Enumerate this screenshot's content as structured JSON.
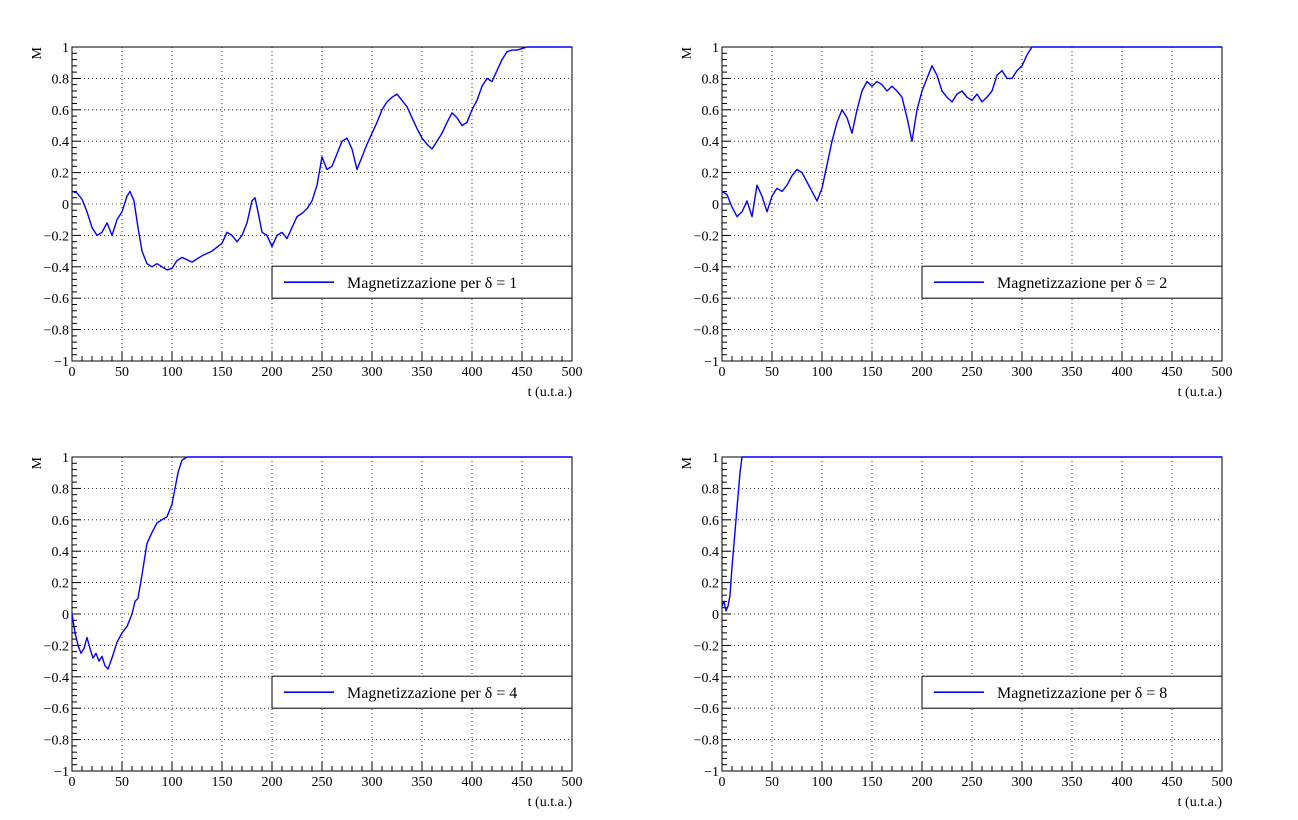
{
  "chart_data": [
    {
      "type": "line",
      "title": "",
      "xlabel": "t (u.t.a.)",
      "ylabel": "M",
      "xlim": [
        0,
        500
      ],
      "ylim": [
        -1,
        1
      ],
      "xticks": [
        "0",
        "50",
        "100",
        "150",
        "200",
        "250",
        "300",
        "350",
        "400",
        "450",
        "500"
      ],
      "yticks": [
        "−1",
        "−0.8",
        "−0.6",
        "−0.4",
        "−0.2",
        "0",
        "0.2",
        "0.4",
        "0.6",
        "0.8",
        "1"
      ],
      "grid": true,
      "legend": "center-right",
      "color": "#0000ff",
      "series": [
        {
          "name": "Magnetizzazione per δ = 1",
          "x": [
            0,
            5,
            10,
            15,
            20,
            25,
            30,
            35,
            40,
            45,
            50,
            55,
            58,
            62,
            66,
            70,
            75,
            80,
            85,
            90,
            95,
            100,
            105,
            110,
            120,
            130,
            140,
            150,
            155,
            160,
            165,
            170,
            175,
            180,
            183,
            186,
            190,
            195,
            200,
            205,
            210,
            215,
            220,
            225,
            230,
            235,
            240,
            245,
            250,
            255,
            260,
            265,
            270,
            275,
            280,
            285,
            290,
            295,
            300,
            305,
            310,
            315,
            320,
            325,
            330,
            335,
            340,
            345,
            350,
            355,
            360,
            365,
            370,
            375,
            380,
            385,
            390,
            395,
            400,
            405,
            410,
            415,
            420,
            425,
            430,
            435,
            440,
            445,
            450,
            455,
            460,
            465,
            470,
            480,
            490,
            500
          ],
          "y": [
            0.08,
            0.07,
            0.03,
            -0.05,
            -0.15,
            -0.2,
            -0.18,
            -0.12,
            -0.2,
            -0.1,
            -0.05,
            0.05,
            0.08,
            0.02,
            -0.15,
            -0.3,
            -0.38,
            -0.4,
            -0.38,
            -0.4,
            -0.42,
            -0.41,
            -0.36,
            -0.34,
            -0.37,
            -0.33,
            -0.3,
            -0.25,
            -0.18,
            -0.2,
            -0.24,
            -0.2,
            -0.12,
            0.02,
            0.04,
            -0.05,
            -0.18,
            -0.2,
            -0.27,
            -0.2,
            -0.18,
            -0.22,
            -0.15,
            -0.08,
            -0.06,
            -0.03,
            0.02,
            0.12,
            0.3,
            0.22,
            0.24,
            0.32,
            0.4,
            0.42,
            0.35,
            0.22,
            0.3,
            0.38,
            0.45,
            0.52,
            0.6,
            0.65,
            0.68,
            0.7,
            0.66,
            0.62,
            0.55,
            0.48,
            0.42,
            0.38,
            0.35,
            0.4,
            0.45,
            0.52,
            0.58,
            0.55,
            0.5,
            0.52,
            0.6,
            0.66,
            0.75,
            0.8,
            0.78,
            0.85,
            0.92,
            0.97,
            0.98,
            0.98,
            0.99,
            1,
            1,
            1,
            1,
            1,
            1,
            1
          ]
        }
      ]
    },
    {
      "type": "line",
      "title": "",
      "xlabel": "t (u.t.a.)",
      "ylabel": "M",
      "xlim": [
        0,
        500
      ],
      "ylim": [
        -1,
        1
      ],
      "xticks": [
        "0",
        "50",
        "100",
        "150",
        "200",
        "250",
        "300",
        "350",
        "400",
        "450",
        "500"
      ],
      "yticks": [
        "−1",
        "−0.8",
        "−0.6",
        "−0.4",
        "−0.2",
        "0",
        "0.2",
        "0.4",
        "0.6",
        "0.8",
        "1"
      ],
      "grid": true,
      "legend": "center-right",
      "color": "#0000ff",
      "series": [
        {
          "name": "Magnetizzazione per δ = 2",
          "x": [
            0,
            5,
            10,
            15,
            20,
            25,
            30,
            35,
            40,
            45,
            50,
            55,
            60,
            65,
            70,
            75,
            80,
            85,
            90,
            95,
            100,
            105,
            110,
            115,
            120,
            125,
            130,
            135,
            140,
            145,
            150,
            155,
            160,
            165,
            170,
            175,
            180,
            185,
            190,
            195,
            200,
            205,
            210,
            215,
            220,
            225,
            230,
            235,
            240,
            245,
            250,
            255,
            260,
            265,
            270,
            275,
            280,
            285,
            290,
            295,
            300,
            305,
            310,
            315,
            320,
            400,
            500
          ],
          "y": [
            0.08,
            0.06,
            -0.02,
            -0.08,
            -0.05,
            0.02,
            -0.08,
            0.12,
            0.05,
            -0.05,
            0.05,
            0.1,
            0.08,
            0.12,
            0.18,
            0.22,
            0.2,
            0.14,
            0.08,
            0.02,
            0.1,
            0.25,
            0.4,
            0.52,
            0.6,
            0.55,
            0.45,
            0.6,
            0.72,
            0.78,
            0.75,
            0.78,
            0.76,
            0.72,
            0.75,
            0.72,
            0.68,
            0.55,
            0.4,
            0.6,
            0.72,
            0.8,
            0.88,
            0.82,
            0.72,
            0.68,
            0.65,
            0.7,
            0.72,
            0.68,
            0.66,
            0.7,
            0.65,
            0.68,
            0.72,
            0.82,
            0.85,
            0.8,
            0.8,
            0.85,
            0.88,
            0.95,
            1,
            1,
            1,
            1,
            1
          ]
        }
      ]
    },
    {
      "type": "line",
      "title": "",
      "xlabel": "t (u.t.a.)",
      "ylabel": "M",
      "xlim": [
        0,
        500
      ],
      "ylim": [
        -1,
        1
      ],
      "xticks": [
        "0",
        "50",
        "100",
        "150",
        "200",
        "250",
        "300",
        "350",
        "400",
        "450",
        "500"
      ],
      "yticks": [
        "−1",
        "−0.8",
        "−0.6",
        "−0.4",
        "−0.2",
        "0",
        "0.2",
        "0.4",
        "0.6",
        "0.8",
        "1"
      ],
      "grid": true,
      "legend": "center-right",
      "color": "#0000ff",
      "series": [
        {
          "name": "Magnetizzazione per δ = 4",
          "x": [
            0,
            3,
            6,
            9,
            12,
            15,
            18,
            21,
            24,
            27,
            30,
            33,
            36,
            40,
            45,
            50,
            55,
            60,
            63,
            66,
            70,
            75,
            80,
            85,
            90,
            95,
            100,
            103,
            106,
            110,
            115,
            200,
            300,
            400,
            500
          ],
          "y": [
            0,
            -0.12,
            -0.2,
            -0.25,
            -0.22,
            -0.15,
            -0.22,
            -0.28,
            -0.25,
            -0.3,
            -0.27,
            -0.33,
            -0.35,
            -0.28,
            -0.18,
            -0.12,
            -0.08,
            0,
            0.08,
            0.1,
            0.25,
            0.45,
            0.52,
            0.58,
            0.6,
            0.62,
            0.7,
            0.8,
            0.9,
            0.98,
            1,
            1,
            1,
            1,
            1
          ]
        }
      ]
    },
    {
      "type": "line",
      "title": "",
      "xlabel": "t (u.t.a.)",
      "ylabel": "M",
      "xlim": [
        0,
        500
      ],
      "ylim": [
        -1,
        1
      ],
      "xticks": [
        "0",
        "50",
        "100",
        "150",
        "200",
        "250",
        "300",
        "350",
        "400",
        "450",
        "500"
      ],
      "yticks": [
        "−1",
        "−0.8",
        "−0.6",
        "−0.4",
        "−0.2",
        "0",
        "0.2",
        "0.4",
        "0.6",
        "0.8",
        "1"
      ],
      "grid": true,
      "legend": "center-right",
      "color": "#0000ff",
      "series": [
        {
          "name": "Magnetizzazione per δ = 8",
          "x": [
            0,
            2,
            4,
            6,
            8,
            10,
            12,
            14,
            16,
            18,
            20,
            100,
            200,
            300,
            400,
            500
          ],
          "y": [
            0.05,
            0.08,
            0.02,
            0.05,
            0.12,
            0.3,
            0.45,
            0.6,
            0.75,
            0.9,
            1,
            1,
            1,
            1,
            1,
            1
          ]
        }
      ]
    }
  ]
}
